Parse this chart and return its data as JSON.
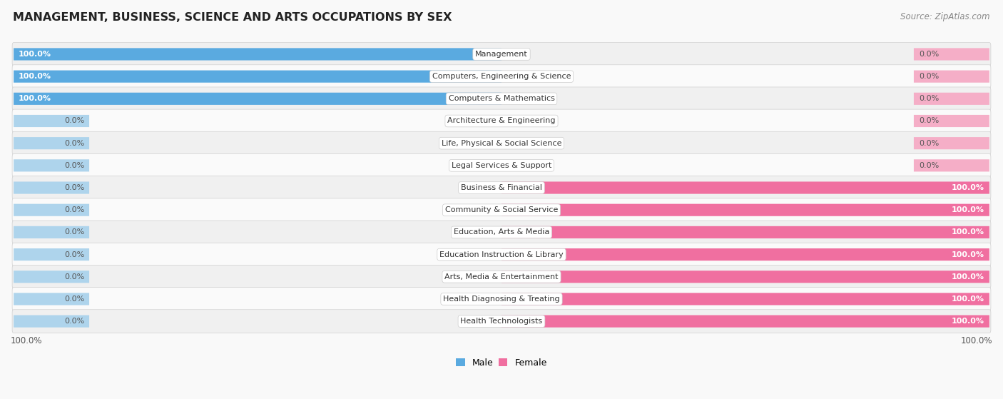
{
  "title": "MANAGEMENT, BUSINESS, SCIENCE AND ARTS OCCUPATIONS BY SEX",
  "source": "Source: ZipAtlas.com",
  "categories": [
    "Management",
    "Computers, Engineering & Science",
    "Computers & Mathematics",
    "Architecture & Engineering",
    "Life, Physical & Social Science",
    "Legal Services & Support",
    "Business & Financial",
    "Community & Social Service",
    "Education, Arts & Media",
    "Education Instruction & Library",
    "Arts, Media & Entertainment",
    "Health Diagnosing & Treating",
    "Health Technologists"
  ],
  "male_values": [
    100.0,
    100.0,
    100.0,
    0.0,
    0.0,
    0.0,
    0.0,
    0.0,
    0.0,
    0.0,
    0.0,
    0.0,
    0.0
  ],
  "female_values": [
    0.0,
    0.0,
    0.0,
    0.0,
    0.0,
    0.0,
    100.0,
    100.0,
    100.0,
    100.0,
    100.0,
    100.0,
    100.0
  ],
  "male_full_color": "#5aaae0",
  "male_stub_color": "#aed4ec",
  "female_full_color": "#f06fa0",
  "female_stub_color": "#f5aec7",
  "row_bg_odd": "#f0f0f0",
  "row_bg_even": "#fafafa",
  "bg_color": "#f9f9f9",
  "label_bg": "#ffffff",
  "title_color": "#222222",
  "source_color": "#888888",
  "pct_color_inside": "#ffffff",
  "pct_color_outside": "#555555"
}
